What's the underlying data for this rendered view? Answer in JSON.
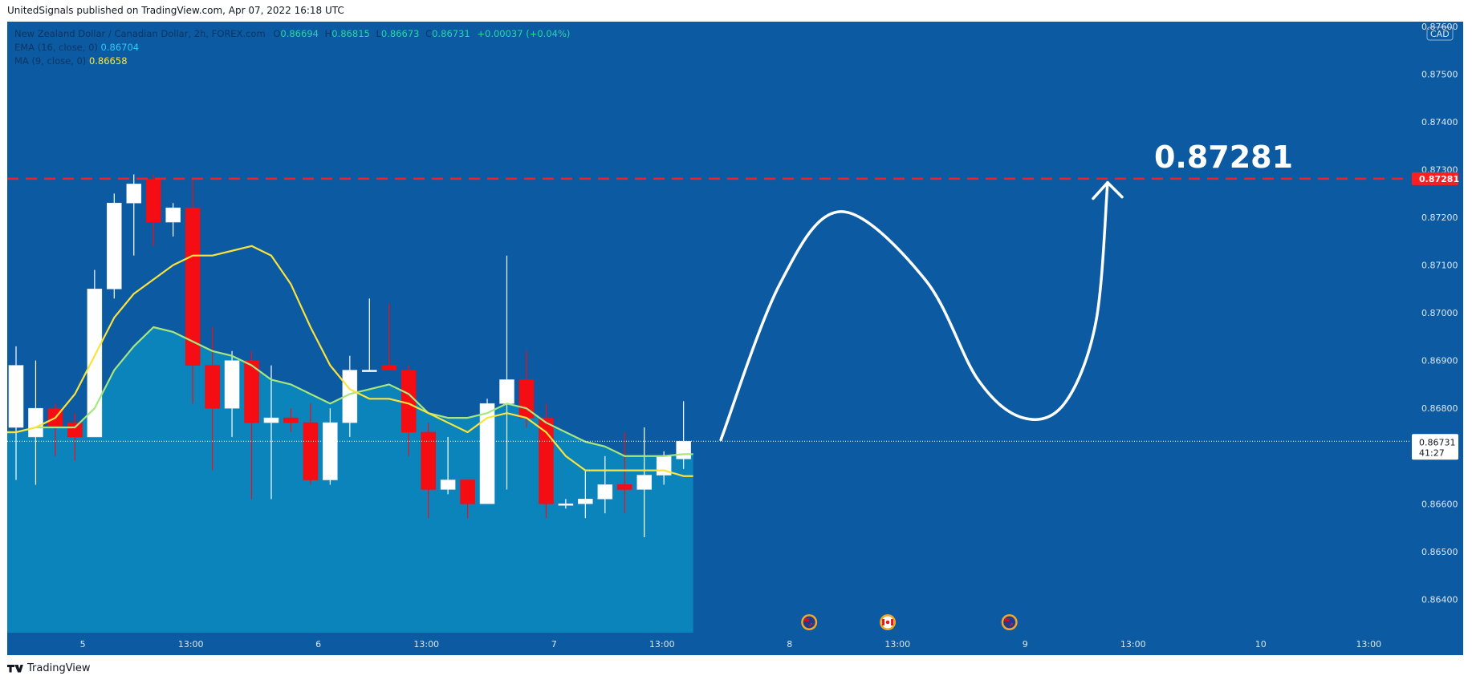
{
  "header": {
    "caption": "UnitedSignals published on TradingView.com, Apr 07, 2022 16:18 UTC"
  },
  "legend": {
    "symbol_line": "New Zealand Dollar / Canadian Dollar, 2h, FOREX.com",
    "open_label": "O",
    "open_value": "0.86694",
    "high_label": "H",
    "high_value": "0.86815",
    "low_label": "L",
    "low_value": "0.86673",
    "close_label": "C",
    "close_value": "0.86731",
    "change": "+0.00037 (+0.04%)",
    "ema_label": "EMA (16, close, 0)",
    "ema_value": "0.86704",
    "ma_label": "MA (9, close, 0)",
    "ma_value": "0.86658"
  },
  "footer": {
    "brand": "TradingView"
  },
  "colors": {
    "background": "#0b5aa2",
    "area_fill": "#0a84bb",
    "up_candle": "#ffffff",
    "down_candle": "#f40d12",
    "ma_line": "#fbe33c",
    "ema_line": "#a8e67e",
    "target_line": "#ff1e1e",
    "text_light": "#ffffff",
    "last_price_label": "#ffffff"
  },
  "icons": [
    "new-zealand-flag-event-icon",
    "canada-flag-event-icon",
    "new-zealand-flag-event-icon"
  ],
  "chart_data": {
    "type": "candlestick",
    "symbol": "NZDCAD",
    "timeframe": "2h",
    "y_axis": {
      "currency": "CAD",
      "ticks": [
        "0.87600",
        "0.87500",
        "0.87400",
        "0.87300",
        "0.87200",
        "0.87100",
        "0.87000",
        "0.86900",
        "0.86800",
        "0.86700",
        "0.86600",
        "0.86500",
        "0.86400"
      ],
      "range": [
        0.8633,
        0.8761
      ]
    },
    "x_axis": {
      "ticks": [
        {
          "label": "5",
          "index": 3.4
        },
        {
          "label": "13:00",
          "index": 8.9
        },
        {
          "label": "6",
          "index": 15.4
        },
        {
          "label": "13:00",
          "index": 20.9
        },
        {
          "label": "7",
          "index": 27.4
        },
        {
          "label": "13:00",
          "index": 32.9
        },
        {
          "label": "8",
          "index": 39.4
        },
        {
          "label": "13:00",
          "index": 44.9
        },
        {
          "label": "9",
          "index": 51.4
        },
        {
          "label": "13:00",
          "index": 56.9
        },
        {
          "label": "10",
          "index": 63.4
        },
        {
          "label": "13:00",
          "index": 68.9
        }
      ]
    },
    "candles": [
      {
        "o": 0.8676,
        "h": 0.8693,
        "l": 0.8665,
        "c": 0.8689
      },
      {
        "o": 0.8674,
        "h": 0.869,
        "l": 0.8664,
        "c": 0.868
      },
      {
        "o": 0.868,
        "h": 0.8681,
        "l": 0.867,
        "c": 0.8676
      },
      {
        "o": 0.8677,
        "h": 0.8679,
        "l": 0.8669,
        "c": 0.8674
      },
      {
        "o": 0.8674,
        "h": 0.8709,
        "l": 0.8674,
        "c": 0.8705
      },
      {
        "o": 0.8705,
        "h": 0.8725,
        "l": 0.8703,
        "c": 0.8723
      },
      {
        "o": 0.8723,
        "h": 0.8729,
        "l": 0.8712,
        "c": 0.8727
      },
      {
        "o": 0.8728,
        "h": 0.8729,
        "l": 0.8714,
        "c": 0.8719
      },
      {
        "o": 0.8719,
        "h": 0.8723,
        "l": 0.8716,
        "c": 0.8722
      },
      {
        "o": 0.8722,
        "h": 0.8728,
        "l": 0.8681,
        "c": 0.8689
      },
      {
        "o": 0.8689,
        "h": 0.8697,
        "l": 0.8667,
        "c": 0.868
      },
      {
        "o": 0.868,
        "h": 0.8692,
        "l": 0.8674,
        "c": 0.869
      },
      {
        "o": 0.869,
        "h": 0.8692,
        "l": 0.8661,
        "c": 0.8677
      },
      {
        "o": 0.8677,
        "h": 0.8689,
        "l": 0.8661,
        "c": 0.8678
      },
      {
        "o": 0.8678,
        "h": 0.868,
        "l": 0.8675,
        "c": 0.8677
      },
      {
        "o": 0.8677,
        "h": 0.8681,
        "l": 0.8664,
        "c": 0.8665
      },
      {
        "o": 0.8665,
        "h": 0.868,
        "l": 0.8664,
        "c": 0.8677
      },
      {
        "o": 0.8677,
        "h": 0.8691,
        "l": 0.8674,
        "c": 0.8688
      },
      {
        "o": 0.8688,
        "h": 0.8703,
        "l": 0.8688,
        "c": 0.8688
      },
      {
        "o": 0.8689,
        "h": 0.8702,
        "l": 0.8689,
        "c": 0.8688
      },
      {
        "o": 0.8688,
        "h": 0.8689,
        "l": 0.867,
        "c": 0.8675
      },
      {
        "o": 0.8675,
        "h": 0.8677,
        "l": 0.8657,
        "c": 0.8663
      },
      {
        "o": 0.8663,
        "h": 0.8674,
        "l": 0.8662,
        "c": 0.8665
      },
      {
        "o": 0.8665,
        "h": 0.8665,
        "l": 0.8657,
        "c": 0.866
      },
      {
        "o": 0.866,
        "h": 0.8682,
        "l": 0.866,
        "c": 0.8681
      },
      {
        "o": 0.8681,
        "h": 0.8712,
        "l": 0.8663,
        "c": 0.8686
      },
      {
        "o": 0.8686,
        "h": 0.8692,
        "l": 0.8676,
        "c": 0.8678
      },
      {
        "o": 0.8678,
        "h": 0.8681,
        "l": 0.8657,
        "c": 0.866
      },
      {
        "o": 0.866,
        "h": 0.8661,
        "l": 0.8659,
        "c": 0.866
      },
      {
        "o": 0.866,
        "h": 0.8667,
        "l": 0.8657,
        "c": 0.8661
      },
      {
        "o": 0.8661,
        "h": 0.867,
        "l": 0.8658,
        "c": 0.8664
      },
      {
        "o": 0.8664,
        "h": 0.8675,
        "l": 0.8658,
        "c": 0.8663
      },
      {
        "o": 0.8663,
        "h": 0.8676,
        "l": 0.8653,
        "c": 0.8666
      },
      {
        "o": 0.8666,
        "h": 0.8671,
        "l": 0.8664,
        "c": 0.867
      },
      {
        "o": 0.86694,
        "h": 0.86815,
        "l": 0.86673,
        "c": 0.86731
      }
    ],
    "ma_9": [
      0.8675,
      0.8676,
      0.8678,
      0.8683,
      0.8691,
      0.8699,
      0.8704,
      0.8707,
      0.871,
      0.8712,
      0.8712,
      0.8713,
      0.8714,
      0.8712,
      0.8706,
      0.8697,
      0.8689,
      0.8684,
      0.8682,
      0.8682,
      0.8681,
      0.8679,
      0.8677,
      0.8675,
      0.8678,
      0.8679,
      0.8678,
      0.8675,
      0.867,
      0.8667,
      0.8667,
      0.8667,
      0.8667,
      0.8667,
      0.86658
    ],
    "ema_16": [
      0.8675,
      0.8676,
      0.8676,
      0.8676,
      0.868,
      0.8688,
      0.8693,
      0.8697,
      0.8696,
      0.8694,
      0.8692,
      0.8691,
      0.8689,
      0.8686,
      0.8685,
      0.8683,
      0.8681,
      0.8683,
      0.8684,
      0.8685,
      0.8683,
      0.8679,
      0.8678,
      0.8678,
      0.8679,
      0.8681,
      0.868,
      0.8677,
      0.8675,
      0.8673,
      0.8672,
      0.867,
      0.867,
      0.867,
      0.86704
    ],
    "last_price": {
      "value": "0.86731",
      "countdown": "41:27"
    },
    "target": {
      "value": 0.87281,
      "label": "0.87281",
      "axis_label": "0.87281"
    },
    "projection": [
      {
        "x": 35.9,
        "y": 0.86734
      },
      {
        "x": 38.9,
        "y": 0.8706
      },
      {
        "x": 42.0,
        "y": 0.87212
      },
      {
        "x": 46.3,
        "y": 0.8707
      },
      {
        "x": 49.0,
        "y": 0.8686
      },
      {
        "x": 51.3,
        "y": 0.8678
      },
      {
        "x": 53.4,
        "y": 0.8681
      },
      {
        "x": 55.0,
        "y": 0.8698
      },
      {
        "x": 55.6,
        "y": 0.87273
      }
    ],
    "events": [
      {
        "icon": "new-zealand-flag-event-icon",
        "index": 40.4
      },
      {
        "icon": "canada-flag-event-icon",
        "index": 44.4
      },
      {
        "icon": "new-zealand-flag-event-icon",
        "index": 50.6
      }
    ]
  }
}
